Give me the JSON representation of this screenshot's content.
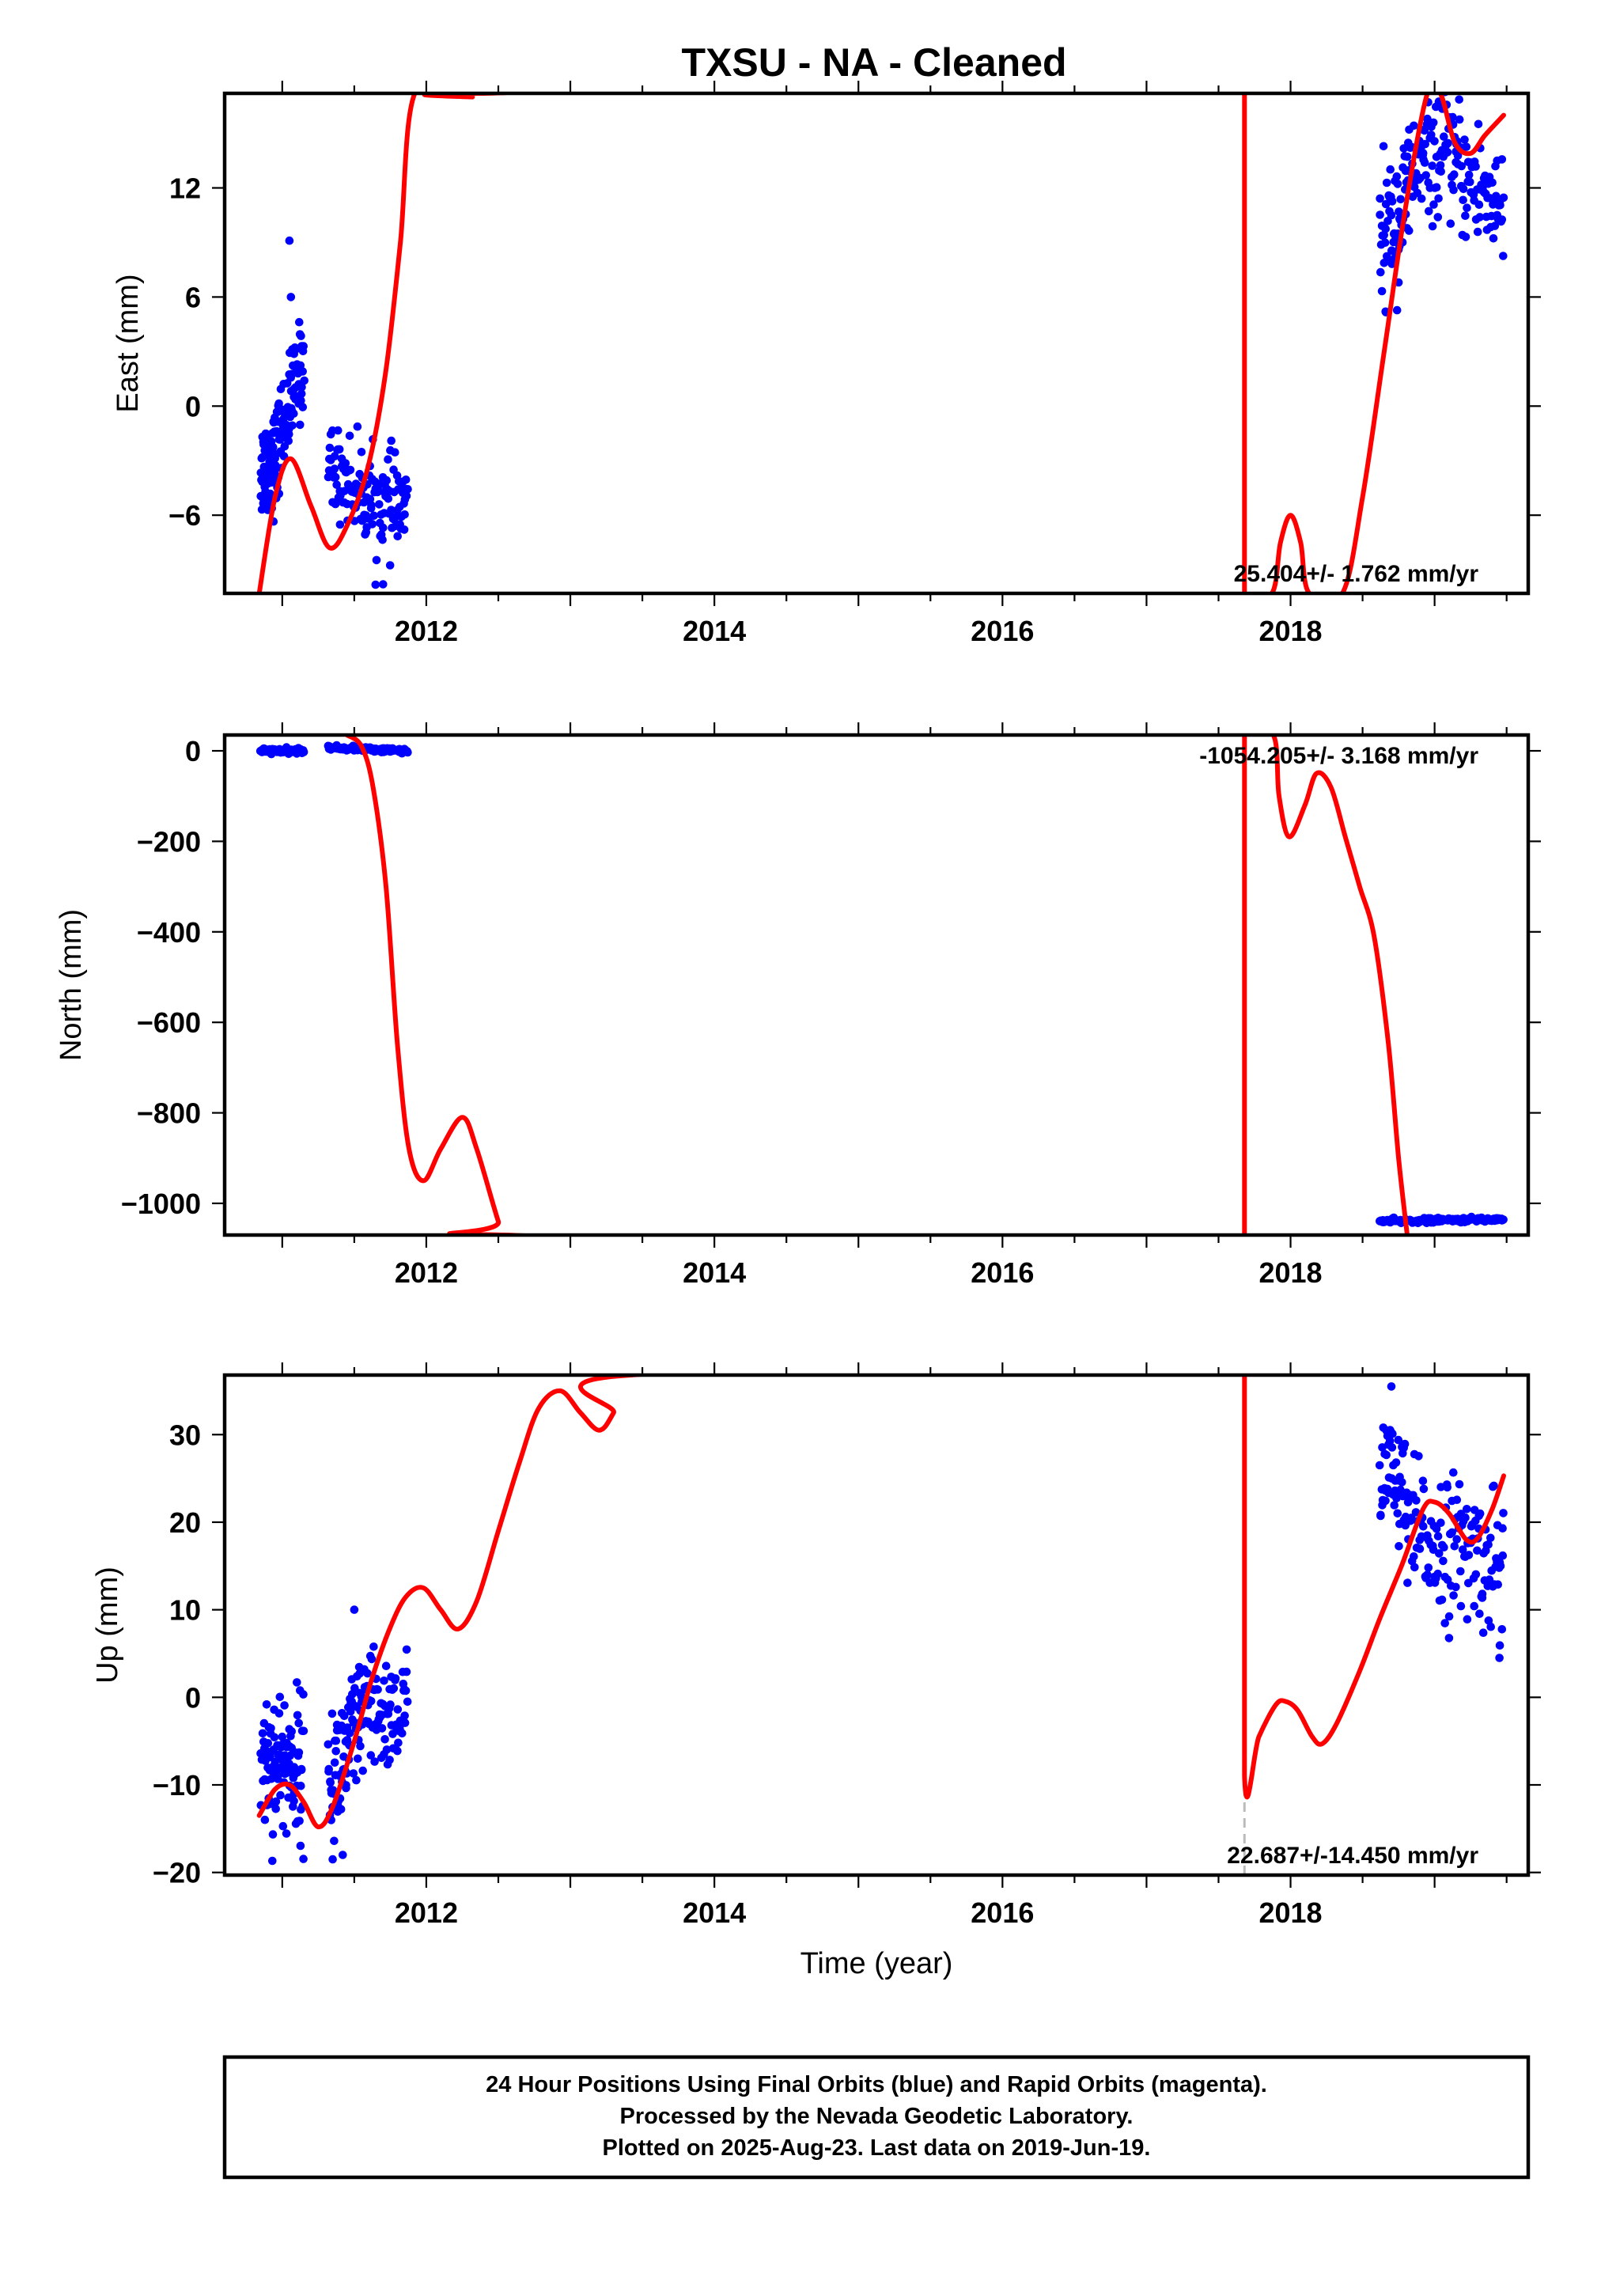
{
  "title": "TXSU  - NA - Cleaned",
  "colors": {
    "final_orbits": "#0000ff",
    "trend": "#ff0000",
    "gap_line": "#bbbbbb",
    "frame": "#000000"
  },
  "footer": {
    "line1": "24 Hour Positions Using Final Orbits (blue) and Rapid Orbits (magenta).",
    "line2": "Processed by the Nevada Geodetic Laboratory.",
    "line3": "Plotted on 2025-Aug-23. Last data on 2019-Jun-19."
  },
  "chart_data": [
    {
      "type": "scatter",
      "name": "east",
      "ylabel": "East (mm)",
      "xlabel": "",
      "xlim": [
        2010.6,
        2019.65
      ],
      "ylim": [
        -10.3,
        17.2
      ],
      "xticks": [
        2012,
        2014,
        2016,
        2018
      ],
      "xtick_labels": [
        "2012",
        "2014",
        "2016",
        "2018"
      ],
      "yticks": [
        -6,
        0,
        6,
        12
      ],
      "ytick_labels": [
        "−6",
        "0",
        "6",
        "12"
      ],
      "rate_text": "25.404+/- 1.762 mm/yr",
      "rate_position": "bottom-right",
      "observations": [
        {
          "t": [
            2010.85,
            2010.97
          ],
          "mean": [
            -3.5,
            -2.8
          ],
          "spread": 1.4,
          "n": 70
        },
        {
          "t": [
            2010.97,
            2011.15
          ],
          "mean": [
            -2.0,
            2.6
          ],
          "spread": 1.3,
          "n": 75
        },
        {
          "t": [
            2011.32,
            2011.58
          ],
          "mean": [
            -3.2,
            -5.0
          ],
          "spread": 1.2,
          "n": 70
        },
        {
          "t": [
            2011.58,
            2011.87
          ],
          "mean": [
            -5.2,
            -5.6
          ],
          "spread": 1.3,
          "n": 75
        },
        {
          "t": [
            2018.62,
            2018.82
          ],
          "mean": [
            9.0,
            11.5
          ],
          "spread": 1.8,
          "n": 60
        },
        {
          "t": [
            2018.82,
            2019.15
          ],
          "mean": [
            13.0,
            14.0
          ],
          "spread": 1.5,
          "n": 80
        },
        {
          "t": [
            2019.15,
            2019.48
          ],
          "mean": [
            13.0,
            11.0
          ],
          "spread": 1.8,
          "n": 70
        }
      ],
      "outliers": [
        {
          "t": 2011.05,
          "y": 9.1
        },
        {
          "t": 2011.06,
          "y": 6.0
        },
        {
          "t": 2011.7,
          "y": -9.8
        },
        {
          "t": 2018.66,
          "y": 5.2
        },
        {
          "t": 2018.75,
          "y": 6.8
        }
      ],
      "trend": [
        [
          2010.84,
          -10.3
        ],
        [
          2010.95,
          -5.0
        ],
        [
          2011.06,
          -2.9
        ],
        [
          2011.2,
          -5.5
        ],
        [
          2011.33,
          -7.8
        ],
        [
          2011.46,
          -6.4
        ],
        [
          2011.6,
          -3.2
        ],
        [
          2011.72,
          2.0
        ],
        [
          2011.82,
          9.0
        ],
        [
          2011.92,
          17.2
        ],
        [
          2012.25,
          17.2
        ],
        [
          2012.32,
          17.0
        ],
        [
          2012.4,
          17.2
        ],
        [
          2017.68,
          17.2
        ],
        [
          2017.68,
          -10.3
        ],
        [
          2017.87,
          -10.3
        ],
        [
          2017.93,
          -7.5
        ],
        [
          2018.0,
          -6.0
        ],
        [
          2018.07,
          -7.5
        ],
        [
          2018.13,
          -10.3
        ],
        [
          2018.36,
          -10.3
        ],
        [
          2018.5,
          -5.0
        ],
        [
          2018.65,
          3.0
        ],
        [
          2018.8,
          11.0
        ],
        [
          2018.95,
          17.2
        ],
        [
          2019.04,
          17.2
        ],
        [
          2019.14,
          14.5
        ],
        [
          2019.25,
          13.9
        ],
        [
          2019.35,
          14.9
        ],
        [
          2019.48,
          16.0
        ]
      ]
    },
    {
      "type": "scatter",
      "name": "north",
      "ylabel": "North (mm)",
      "xlabel": "",
      "xlim": [
        2010.6,
        2019.65
      ],
      "ylim": [
        -1070,
        35
      ],
      "xticks": [
        2012,
        2014,
        2016,
        2018
      ],
      "xtick_labels": [
        "2012",
        "2014",
        "2016",
        "2018"
      ],
      "yticks": [
        -1000,
        -800,
        -600,
        -400,
        -200,
        0
      ],
      "ytick_labels": [
        "−1000",
        "−800",
        "−600",
        "−400",
        "−200",
        "0"
      ],
      "rate_text": "-1054.205+/- 3.168 mm/yr",
      "rate_position": "top-right",
      "observations": [
        {
          "t": [
            2010.85,
            2011.15
          ],
          "mean": [
            0,
            0
          ],
          "spread": 2.5,
          "n": 90
        },
        {
          "t": [
            2011.32,
            2011.87
          ],
          "mean": [
            7,
            0
          ],
          "spread": 2.5,
          "n": 110
        },
        {
          "t": [
            2018.62,
            2019.48
          ],
          "mean": [
            -1040,
            -1035
          ],
          "spread": 2.5,
          "n": 150
        }
      ],
      "outliers": [],
      "trend": [
        [
          2011.45,
          35
        ],
        [
          2011.55,
          10
        ],
        [
          2011.63,
          -80
        ],
        [
          2011.72,
          -300
        ],
        [
          2011.8,
          -650
        ],
        [
          2011.88,
          -880
        ],
        [
          2011.98,
          -950
        ],
        [
          2012.1,
          -880
        ],
        [
          2012.25,
          -810
        ],
        [
          2012.35,
          -880
        ],
        [
          2012.5,
          -1040
        ],
        [
          2012.55,
          -1070
        ],
        [
          2017.68,
          -1070
        ],
        [
          2017.68,
          35
        ],
        [
          2017.88,
          35
        ],
        [
          2017.92,
          -100
        ],
        [
          2017.99,
          -190
        ],
        [
          2018.1,
          -120
        ],
        [
          2018.18,
          -50
        ],
        [
          2018.28,
          -80
        ],
        [
          2018.38,
          -190
        ],
        [
          2018.48,
          -300
        ],
        [
          2018.58,
          -410
        ],
        [
          2018.68,
          -650
        ],
        [
          2018.75,
          -900
        ],
        [
          2018.81,
          -1070
        ]
      ]
    },
    {
      "type": "scatter",
      "name": "up",
      "ylabel": "Up (mm)",
      "xlabel": "Time (year)",
      "xlim": [
        2010.6,
        2019.65
      ],
      "ylim": [
        -20.3,
        36.8
      ],
      "xticks": [
        2012,
        2014,
        2016,
        2018
      ],
      "xtick_labels": [
        "2012",
        "2014",
        "2016",
        "2018"
      ],
      "yticks": [
        -20,
        -10,
        0,
        10,
        20,
        30
      ],
      "ytick_labels": [
        "−20",
        "−10",
        "0",
        "10",
        "20",
        "30"
      ],
      "rate_text": "22.687+/-14.450 mm/yr",
      "rate_position": "bottom-right",
      "observations": [
        {
          "t": [
            2010.85,
            2011.15
          ],
          "mean": [
            -7,
            -8
          ],
          "spread": 4.0,
          "n": 110
        },
        {
          "t": [
            2011.32,
            2011.55
          ],
          "mean": [
            -10,
            -3
          ],
          "spread": 4.0,
          "n": 80
        },
        {
          "t": [
            2011.55,
            2011.87
          ],
          "mean": [
            -2,
            -2
          ],
          "spread": 3.5,
          "n": 80
        },
        {
          "t": [
            2018.62,
            2018.8
          ],
          "mean": [
            28,
            22
          ],
          "spread": 3.5,
          "n": 50
        },
        {
          "t": [
            2018.8,
            2019.48
          ],
          "mean": [
            19,
            15
          ],
          "spread": 4.0,
          "n": 140
        }
      ],
      "outliers": [
        {
          "t": 2011.5,
          "y": 10.0
        },
        {
          "t": 2011.35,
          "y": -18.5
        },
        {
          "t": 2011.42,
          "y": -18.0
        },
        {
          "t": 2018.7,
          "y": 35.5
        },
        {
          "t": 2019.45,
          "y": 4.5
        }
      ],
      "gap_segment": {
        "t": 2017.68,
        "y": [
          -20.3,
          -9.0
        ]
      },
      "trend": [
        [
          2010.84,
          -13.5
        ],
        [
          2010.95,
          -10.5
        ],
        [
          2011.05,
          -10.0
        ],
        [
          2011.15,
          -12.0
        ],
        [
          2011.25,
          -14.8
        ],
        [
          2011.35,
          -12.5
        ],
        [
          2011.5,
          -5.0
        ],
        [
          2011.62,
          2.0
        ],
        [
          2011.75,
          8.0
        ],
        [
          2011.86,
          11.5
        ],
        [
          2011.98,
          12.5
        ],
        [
          2012.1,
          10.0
        ],
        [
          2012.22,
          7.8
        ],
        [
          2012.35,
          11.0
        ],
        [
          2012.5,
          19.0
        ],
        [
          2012.65,
          27.0
        ],
        [
          2012.78,
          33.0
        ],
        [
          2012.93,
          35.0
        ],
        [
          2013.07,
          32.5
        ],
        [
          2013.2,
          30.5
        ],
        [
          2013.3,
          32.5
        ],
        [
          2013.42,
          36.8
        ],
        [
          2017.68,
          36.8
        ],
        [
          2017.68,
          -9.0
        ],
        [
          2017.78,
          -4.5
        ],
        [
          2017.9,
          -0.8
        ],
        [
          2017.97,
          -0.5
        ],
        [
          2018.05,
          -1.5
        ],
        [
          2018.15,
          -4.5
        ],
        [
          2018.22,
          -5.3
        ],
        [
          2018.32,
          -3.0
        ],
        [
          2018.48,
          3.0
        ],
        [
          2018.62,
          9.0
        ],
        [
          2018.77,
          15.0
        ],
        [
          2018.92,
          21.5
        ],
        [
          2019.0,
          22.3
        ],
        [
          2019.1,
          21.0
        ],
        [
          2019.22,
          18.0
        ],
        [
          2019.3,
          18.2
        ],
        [
          2019.4,
          21.5
        ],
        [
          2019.48,
          25.3
        ]
      ]
    }
  ]
}
